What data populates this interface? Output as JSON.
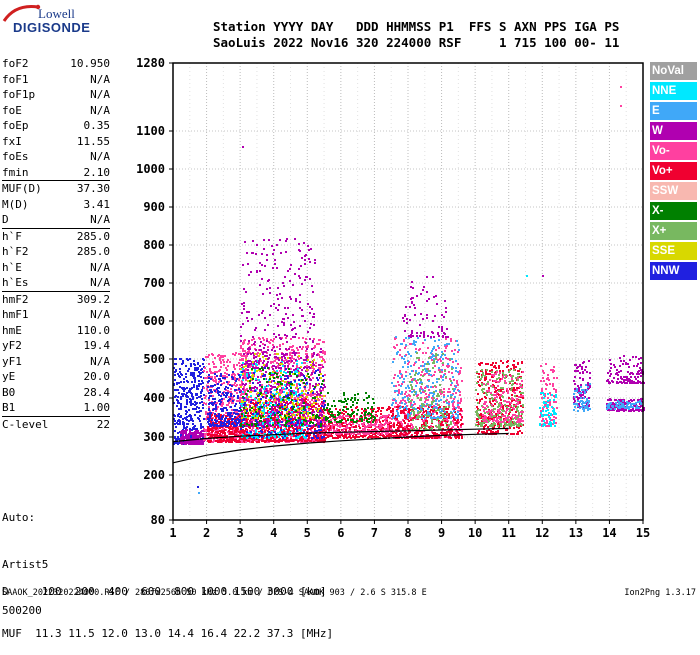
{
  "logo": {
    "line1": "Lowell",
    "line2": "DIGISONDE"
  },
  "header": {
    "line1": "Station YYYY DAY   DDD HHMMSS P1  FFS S AXN PPS IGA PS",
    "line2": "SaoLuis 2022 Nov16 320 224000 RSF     1 715 100 00- 11"
  },
  "params": [
    {
      "name": "foF2",
      "value": "10.950"
    },
    {
      "name": "foF1",
      "value": "N/A"
    },
    {
      "name": "foF1p",
      "value": "N/A"
    },
    {
      "name": "foE",
      "value": "N/A"
    },
    {
      "name": "foEp",
      "value": "0.35"
    },
    {
      "name": "fxI",
      "value": "11.55"
    },
    {
      "name": "foEs",
      "value": "N/A"
    },
    {
      "name": "fmin",
      "value": "2.10"
    },
    {
      "name": "MUF(D)",
      "value": "37.30",
      "sep": true
    },
    {
      "name": "M(D)",
      "value": "3.41"
    },
    {
      "name": "D",
      "value": "N/A"
    },
    {
      "name": "h`F",
      "value": "285.0",
      "sep": true
    },
    {
      "name": "h`F2",
      "value": "285.0"
    },
    {
      "name": "h`E",
      "value": "N/A"
    },
    {
      "name": "h`Es",
      "value": "N/A"
    },
    {
      "name": "hmF2",
      "value": "309.2",
      "sep": true
    },
    {
      "name": "hmF1",
      "value": "N/A"
    },
    {
      "name": "hmE",
      "value": "110.0"
    },
    {
      "name": "yF2",
      "value": "19.4"
    },
    {
      "name": "yF1",
      "value": "N/A"
    },
    {
      "name": "yE",
      "value": "20.0"
    },
    {
      "name": "B0",
      "value": "28.4"
    },
    {
      "name": "B1",
      "value": "1.00"
    },
    {
      "name": "C-level",
      "value": "22",
      "sep": true
    }
  ],
  "autoscale": [
    "Auto:",
    "Artist5",
    "500200"
  ],
  "legend": [
    {
      "label": "NoVal",
      "color": "#a0a0a0"
    },
    {
      "label": "NNE",
      "color": "#00e8ff"
    },
    {
      "label": "E",
      "color": "#40a8f8"
    },
    {
      "label": "W",
      "color": "#b000b0"
    },
    {
      "label": "Vo-",
      "color": "#ff40a0"
    },
    {
      "label": "Vo+",
      "color": "#f00030"
    },
    {
      "label": "SSW",
      "color": "#f8b8b0"
    },
    {
      "label": "X-",
      "color": "#008000"
    },
    {
      "label": "X+",
      "color": "#78b860"
    },
    {
      "label": "SSE",
      "color": "#d8d800"
    },
    {
      "label": "NNW",
      "color": "#2020e0"
    }
  ],
  "footer": {
    "d_row": "D     100  200  400  600  800 1000 1500 3000 [km]",
    "muf_row": "MUF  11.3 11.5 12.0 13.0 14.4 16.4 22.2 37.3 [MHz]",
    "bottom": "SAAOK_2022320224000.RSF / 280fx256h 50 kHz 5.0 km / DPS-4 SAAOK 903 / 2.6 S 315.8 E",
    "version": "Ion2Png 1.3.17"
  },
  "chart_data": {
    "type": "scatter",
    "x_ticks": [
      "1",
      "2",
      "3",
      "4",
      "5",
      "6",
      "7",
      "8",
      "9",
      "10",
      "11",
      "12",
      "13",
      "14",
      "15"
    ],
    "y_ticks": [
      "80",
      "200",
      "300",
      "400",
      "500",
      "600",
      "700",
      "800",
      "900",
      "1000",
      "1100",
      "1280"
    ],
    "xlim": [
      1,
      15
    ],
    "ylim": [
      80,
      1280
    ],
    "y_scale": "piecewise",
    "grid": true,
    "legend_position": "right",
    "trace_lines": [
      {
        "x": [
          1.0,
          2.0,
          3.0,
          4.0,
          5.0,
          6.0,
          7.0,
          8.0,
          9.0,
          10.0,
          11.0
        ],
        "y": [
          232,
          252,
          266,
          276,
          284,
          290,
          295,
          300,
          304,
          307,
          309
        ]
      },
      {
        "x": [
          1.0,
          2.0,
          3.0,
          4.0,
          5.0,
          6.0,
          7.0,
          8.0,
          9.0,
          10.0,
          11.0
        ],
        "y": [
          288,
          296,
          302,
          306,
          310,
          312,
          314,
          316,
          318,
          320,
          322
        ]
      }
    ],
    "clusters": [
      {
        "x": [
          1.0,
          1.9
        ],
        "y": [
          285,
          505
        ],
        "n": 380,
        "color": "#2020e0"
      },
      {
        "x": [
          1.2,
          1.9
        ],
        "y": [
          285,
          320
        ],
        "n": 200,
        "color": "#b000b0"
      },
      {
        "x": [
          1.9,
          3.2
        ],
        "y": [
          290,
          520
        ],
        "n": 520,
        "color": "#ff40a0"
      },
      {
        "x": [
          2.0,
          3.2
        ],
        "y": [
          290,
          360
        ],
        "n": 300,
        "color": "#f00030"
      },
      {
        "x": [
          2.0,
          3.0
        ],
        "y": [
          330,
          470
        ],
        "n": 220,
        "color": "#2020e0"
      },
      {
        "x": [
          3.0,
          5.5
        ],
        "y": [
          290,
          560
        ],
        "n": 900,
        "color": "#ff40a0"
      },
      {
        "x": [
          3.0,
          5.5
        ],
        "y": [
          290,
          400
        ],
        "n": 500,
        "color": "#f00030"
      },
      {
        "x": [
          3.0,
          5.5
        ],
        "y": [
          330,
          530
        ],
        "n": 420,
        "color": "#b000b0"
      },
      {
        "x": [
          3.0,
          5.0
        ],
        "y": [
          300,
          500
        ],
        "n": 250,
        "color": "#00e8ff"
      },
      {
        "x": [
          3.0,
          5.2
        ],
        "y": [
          480,
          820
        ],
        "n": 260,
        "color": "#b000b0"
      },
      {
        "x": [
          3.0,
          5.5
        ],
        "y": [
          350,
          520
        ],
        "n": 180,
        "color": "#d8d800"
      },
      {
        "x": [
          3.0,
          5.5
        ],
        "y": [
          330,
          480
        ],
        "n": 150,
        "color": "#008000"
      },
      {
        "x": [
          3.0,
          5.5
        ],
        "y": [
          300,
          480
        ],
        "n": 140,
        "color": "#2020e0"
      },
      {
        "x": [
          5.5,
          7.5
        ],
        "y": [
          300,
          380
        ],
        "n": 320,
        "color": "#f00030"
      },
      {
        "x": [
          5.5,
          7.5
        ],
        "y": [
          310,
          360
        ],
        "n": 220,
        "color": "#ff40a0"
      },
      {
        "x": [
          5.5,
          7.0
        ],
        "y": [
          340,
          420
        ],
        "n": 120,
        "color": "#008000"
      },
      {
        "x": [
          7.5,
          9.6
        ],
        "y": [
          300,
          560
        ],
        "n": 450,
        "color": "#ff40a0"
      },
      {
        "x": [
          7.5,
          9.6
        ],
        "y": [
          300,
          380
        ],
        "n": 320,
        "color": "#f00030"
      },
      {
        "x": [
          7.5,
          9.5
        ],
        "y": [
          350,
          560
        ],
        "n": 260,
        "color": "#40a8f8"
      },
      {
        "x": [
          7.8,
          9.2
        ],
        "y": [
          560,
          720
        ],
        "n": 80,
        "color": "#b000b0"
      },
      {
        "x": [
          8.0,
          9.3
        ],
        "y": [
          320,
          520
        ],
        "n": 140,
        "color": "#78b860"
      },
      {
        "x": [
          10.0,
          11.4
        ],
        "y": [
          310,
          500
        ],
        "n": 320,
        "color": "#f00030"
      },
      {
        "x": [
          10.0,
          11.4
        ],
        "y": [
          330,
          480
        ],
        "n": 220,
        "color": "#78b860"
      },
      {
        "x": [
          10.2,
          11.4
        ],
        "y": [
          340,
          470
        ],
        "n": 160,
        "color": "#ff40a0"
      },
      {
        "x": [
          11.9,
          12.4
        ],
        "y": [
          330,
          490
        ],
        "n": 90,
        "color": "#ff40a0"
      },
      {
        "x": [
          11.9,
          12.4
        ],
        "y": [
          330,
          420
        ],
        "n": 60,
        "color": "#00e8ff"
      },
      {
        "x": [
          12.9,
          13.4
        ],
        "y": [
          380,
          500
        ],
        "n": 90,
        "color": "#b000b0"
      },
      {
        "x": [
          12.9,
          13.4
        ],
        "y": [
          370,
          440
        ],
        "n": 60,
        "color": "#40a8f8"
      },
      {
        "x": [
          13.9,
          15.0
        ],
        "y": [
          440,
          510
        ],
        "n": 110,
        "color": "#b000b0"
      },
      {
        "x": [
          13.9,
          15.0
        ],
        "y": [
          370,
          400
        ],
        "n": 140,
        "color": "#b000b0"
      },
      {
        "x": [
          13.9,
          15.0
        ],
        "y": [
          375,
          395
        ],
        "n": 60,
        "color": "#40a8f8"
      }
    ],
    "isolated_points": [
      {
        "x": 1.7,
        "y": 170,
        "color": "#2020e0"
      },
      {
        "x": 1.75,
        "y": 155,
        "color": "#40a8f8"
      },
      {
        "x": 3.05,
        "y": 1060,
        "color": "#b000b0"
      },
      {
        "x": 11.5,
        "y": 720,
        "color": "#00e8ff"
      },
      {
        "x": 14.3,
        "y": 1220,
        "color": "#ff40a0"
      },
      {
        "x": 14.3,
        "y": 1170,
        "color": "#ff40a0"
      },
      {
        "x": 12.0,
        "y": 720,
        "color": "#b000b0"
      }
    ]
  }
}
